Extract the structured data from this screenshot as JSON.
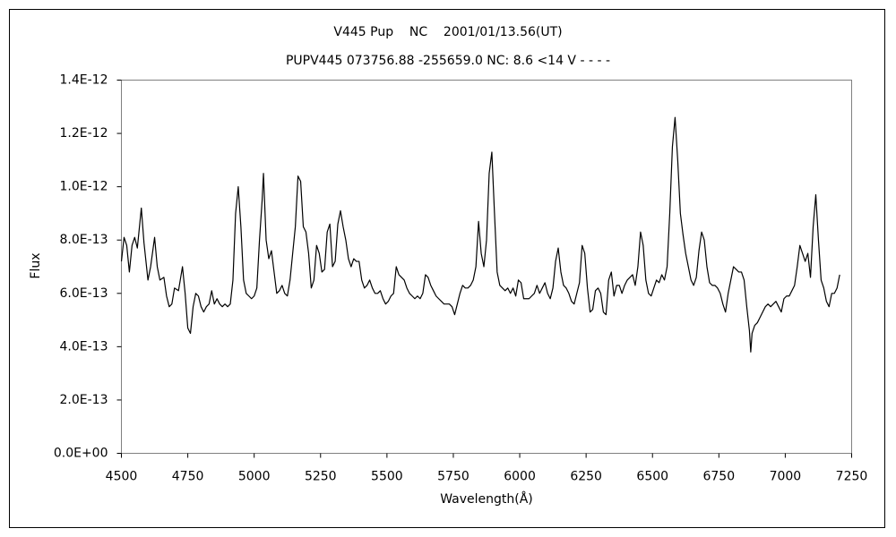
{
  "chart_data": {
    "type": "line",
    "title": "V445 Pup    NC    2001/01/13.56(UT)",
    "subtitle": "PUPV445 073756.88 -255659.0 NC: 8.6 <14 V - - - -",
    "xlabel": "Wavelength(Å)",
    "ylabel": "Flux",
    "color": "#000000",
    "grid": false,
    "xlim": [
      4500,
      7250
    ],
    "xticks": [
      4500,
      4750,
      5000,
      5250,
      5500,
      5750,
      6000,
      6250,
      6500,
      6750,
      7000,
      7250
    ],
    "ylim": [
      0,
      1.4e-12
    ],
    "yticks": [
      {
        "value": 0,
        "label": "0.0E+00"
      },
      {
        "value": 2e-13,
        "label": "2.0E-13"
      },
      {
        "value": 4e-13,
        "label": "4.0E-13"
      },
      {
        "value": 6e-13,
        "label": "6.0E-13"
      },
      {
        "value": 8e-13,
        "label": "8.0E-13"
      },
      {
        "value": 1e-12,
        "label": "1.0E-12"
      },
      {
        "value": 1.2e-12,
        "label": "1.2E-12"
      },
      {
        "value": 1.4e-12,
        "label": "1.4E-12"
      }
    ],
    "x": [
      4500,
      4510,
      4520,
      4530,
      4540,
      4550,
      4560,
      4575,
      4585,
      4600,
      4610,
      4625,
      4635,
      4645,
      4660,
      4670,
      4680,
      4690,
      4700,
      4715,
      4730,
      4740,
      4750,
      4760,
      4770,
      4780,
      4790,
      4800,
      4810,
      4820,
      4830,
      4840,
      4850,
      4860,
      4870,
      4880,
      4890,
      4900,
      4910,
      4920,
      4930,
      4940,
      4950,
      4960,
      4970,
      4980,
      4990,
      5000,
      5010,
      5020,
      5030,
      5035,
      5045,
      5055,
      5065,
      5075,
      5085,
      5095,
      5105,
      5115,
      5125,
      5135,
      5145,
      5155,
      5165,
      5175,
      5185,
      5195,
      5205,
      5215,
      5225,
      5235,
      5245,
      5255,
      5265,
      5275,
      5285,
      5295,
      5305,
      5315,
      5325,
      5335,
      5345,
      5355,
      5365,
      5375,
      5385,
      5395,
      5405,
      5415,
      5425,
      5435,
      5445,
      5455,
      5465,
      5475,
      5485,
      5495,
      5505,
      5515,
      5525,
      5535,
      5545,
      5555,
      5565,
      5575,
      5585,
      5595,
      5605,
      5615,
      5625,
      5635,
      5645,
      5655,
      5665,
      5675,
      5685,
      5695,
      5705,
      5715,
      5725,
      5735,
      5745,
      5755,
      5765,
      5775,
      5785,
      5795,
      5805,
      5815,
      5825,
      5835,
      5845,
      5855,
      5865,
      5875,
      5885,
      5895,
      5905,
      5915,
      5925,
      5935,
      5945,
      5955,
      5965,
      5975,
      5985,
      5995,
      6005,
      6015,
      6025,
      6035,
      6045,
      6055,
      6065,
      6075,
      6085,
      6095,
      6105,
      6115,
      6125,
      6135,
      6145,
      6155,
      6165,
      6175,
      6185,
      6195,
      6205,
      6215,
      6225,
      6235,
      6245,
      6255,
      6265,
      6275,
      6285,
      6295,
      6305,
      6315,
      6325,
      6335,
      6345,
      6355,
      6365,
      6375,
      6385,
      6395,
      6405,
      6415,
      6425,
      6435,
      6445,
      6455,
      6465,
      6475,
      6485,
      6495,
      6505,
      6515,
      6525,
      6535,
      6545,
      6555,
      6565,
      6575,
      6585,
      6595,
      6605,
      6615,
      6625,
      6635,
      6645,
      6655,
      6665,
      6675,
      6685,
      6695,
      6705,
      6715,
      6725,
      6735,
      6745,
      6755,
      6765,
      6775,
      6785,
      6795,
      6805,
      6815,
      6825,
      6835,
      6845,
      6855,
      6865,
      6870,
      6875,
      6885,
      6895,
      6905,
      6915,
      6925,
      6935,
      6945,
      6955,
      6965,
      6975,
      6985,
      6995,
      7005,
      7015,
      7025,
      7035,
      7045,
      7055,
      7065,
      7075,
      7085,
      7095,
      7105,
      7115,
      7125,
      7135,
      7145,
      7155,
      7165,
      7175,
      7185,
      7195,
      7205
    ],
    "values": [
      7.2e-13,
      8.1e-13,
      7.8e-13,
      6.8e-13,
      7.8e-13,
      8.1e-13,
      7.7e-13,
      9.2e-13,
      7.9e-13,
      6.5e-13,
      7e-13,
      8.1e-13,
      7e-13,
      6.5e-13,
      6.6e-13,
      5.9e-13,
      5.5e-13,
      5.6e-13,
      6.2e-13,
      6.1e-13,
      7e-13,
      6e-13,
      4.7e-13,
      4.5e-13,
      5.5e-13,
      6e-13,
      5.9e-13,
      5.5e-13,
      5.3e-13,
      5.5e-13,
      5.6e-13,
      6.1e-13,
      5.6e-13,
      5.8e-13,
      5.6e-13,
      5.5e-13,
      5.6e-13,
      5.5e-13,
      5.6e-13,
      6.5e-13,
      9e-13,
      1e-12,
      8.5e-13,
      6.5e-13,
      6e-13,
      5.9e-13,
      5.8e-13,
      5.9e-13,
      6.2e-13,
      8e-13,
      9.5e-13,
      1.05e-12,
      8e-13,
      7.3e-13,
      7.6e-13,
      6.8e-13,
      6e-13,
      6.1e-13,
      6.3e-13,
      6e-13,
      5.9e-13,
      6.5e-13,
      7.5e-13,
      8.5e-13,
      1.04e-12,
      1.02e-12,
      8.5e-13,
      8.3e-13,
      7.5e-13,
      6.2e-13,
      6.5e-13,
      7.8e-13,
      7.5e-13,
      6.8e-13,
      6.9e-13,
      8.3e-13,
      8.6e-13,
      7e-13,
      7.2e-13,
      8.6e-13,
      9.1e-13,
      8.5e-13,
      8e-13,
      7.3e-13,
      7e-13,
      7.3e-13,
      7.2e-13,
      7.2e-13,
      6.5e-13,
      6.2e-13,
      6.3e-13,
      6.5e-13,
      6.2e-13,
      6e-13,
      6e-13,
      6.1e-13,
      5.8e-13,
      5.6e-13,
      5.7e-13,
      5.9e-13,
      6e-13,
      7e-13,
      6.7e-13,
      6.6e-13,
      6.5e-13,
      6.2e-13,
      6e-13,
      5.9e-13,
      5.8e-13,
      5.9e-13,
      5.8e-13,
      6e-13,
      6.7e-13,
      6.6e-13,
      6.3e-13,
      6.1e-13,
      5.9e-13,
      5.8e-13,
      5.7e-13,
      5.6e-13,
      5.6e-13,
      5.6e-13,
      5.5e-13,
      5.2e-13,
      5.6e-13,
      6e-13,
      6.3e-13,
      6.2e-13,
      6.2e-13,
      6.3e-13,
      6.5e-13,
      7e-13,
      8.7e-13,
      7.5e-13,
      7e-13,
      8e-13,
      1.05e-12,
      1.13e-12,
      9e-13,
      6.8e-13,
      6.3e-13,
      6.2e-13,
      6.1e-13,
      6.2e-13,
      6e-13,
      6.2e-13,
      5.9e-13,
      6.5e-13,
      6.4e-13,
      5.8e-13,
      5.8e-13,
      5.8e-13,
      5.9e-13,
      6e-13,
      6.3e-13,
      6e-13,
      6.2e-13,
      6.4e-13,
      6e-13,
      5.8e-13,
      6.2e-13,
      7.2e-13,
      7.7e-13,
      6.8e-13,
      6.3e-13,
      6.2e-13,
      6e-13,
      5.7e-13,
      5.6e-13,
      6e-13,
      6.4e-13,
      7.8e-13,
      7.5e-13,
      6.2e-13,
      5.3e-13,
      5.4e-13,
      6.1e-13,
      6.2e-13,
      6e-13,
      5.3e-13,
      5.2e-13,
      6.5e-13,
      6.8e-13,
      5.9e-13,
      6.3e-13,
      6.3e-13,
      6e-13,
      6.3e-13,
      6.5e-13,
      6.6e-13,
      6.7e-13,
      6.3e-13,
      7e-13,
      8.3e-13,
      7.8e-13,
      6.5e-13,
      6e-13,
      5.9e-13,
      6.2e-13,
      6.5e-13,
      6.4e-13,
      6.7e-13,
      6.5e-13,
      7e-13,
      9e-13,
      1.15e-12,
      1.26e-12,
      1.1e-12,
      9e-13,
      8.2e-13,
      7.5e-13,
      7e-13,
      6.5e-13,
      6.3e-13,
      6.6e-13,
      7.6e-13,
      8.3e-13,
      8e-13,
      7e-13,
      6.4e-13,
      6.3e-13,
      6.3e-13,
      6.2e-13,
      6e-13,
      5.6e-13,
      5.3e-13,
      6e-13,
      6.5e-13,
      7e-13,
      6.9e-13,
      6.8e-13,
      6.8e-13,
      6.5e-13,
      5.5e-13,
      4.6e-13,
      3.8e-13,
      4.5e-13,
      4.8e-13,
      4.9e-13,
      5.1e-13,
      5.3e-13,
      5.5e-13,
      5.6e-13,
      5.5e-13,
      5.6e-13,
      5.7e-13,
      5.5e-13,
      5.3e-13,
      5.8e-13,
      5.9e-13,
      5.9e-13,
      6.1e-13,
      6.3e-13,
      7e-13,
      7.8e-13,
      7.5e-13,
      7.2e-13,
      7.5e-13,
      6.6e-13,
      8.5e-13,
      9.7e-13,
      8e-13,
      6.5e-13,
      6.2e-13,
      5.7e-13,
      5.5e-13,
      6e-13,
      6e-13,
      6.2e-13,
      6.7e-13
    ]
  }
}
